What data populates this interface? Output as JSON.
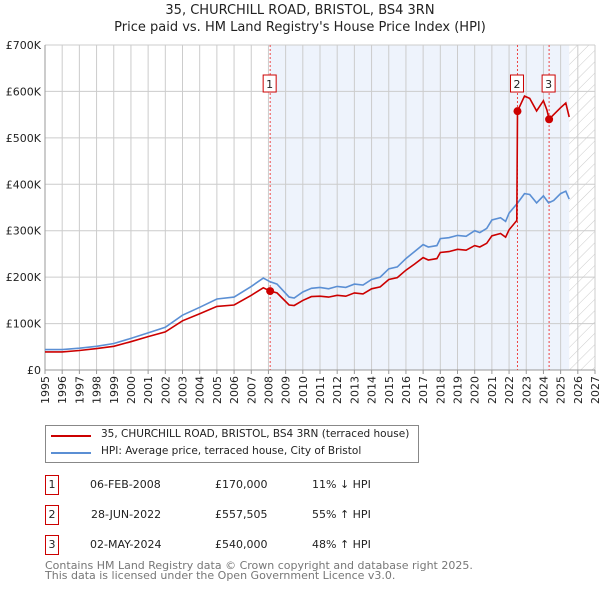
{
  "title_line1": "35, CHURCHILL ROAD, BRISTOL, BS4 3RN",
  "title_line2": "Price paid vs. HM Land Registry's House Price Index (HPI)",
  "chart_data": {
    "type": "line",
    "title": "35, CHURCHILL ROAD, BRISTOL, BS4 3RN — Price paid vs. HM Land Registry's House Price Index (HPI)",
    "xlim": [
      1995,
      2027
    ],
    "ylim": [
      0,
      700000
    ],
    "x_ticks": [
      "1995",
      "1996",
      "1997",
      "1998",
      "1999",
      "2000",
      "2001",
      "2002",
      "2003",
      "2004",
      "2005",
      "2006",
      "2007",
      "2008",
      "2009",
      "2010",
      "2011",
      "2012",
      "2013",
      "2014",
      "2015",
      "2016",
      "2017",
      "2018",
      "2019",
      "2020",
      "2021",
      "2022",
      "2023",
      "2024",
      "2025",
      "2026",
      "2027"
    ],
    "y_ticks": [
      {
        "v": 0,
        "label": "£0"
      },
      {
        "v": 100000,
        "label": "£100K"
      },
      {
        "v": 200000,
        "label": "£200K"
      },
      {
        "v": 300000,
        "label": "£300K"
      },
      {
        "v": 400000,
        "label": "£400K"
      },
      {
        "v": 500000,
        "label": "£500K"
      },
      {
        "v": 600000,
        "label": "£600K"
      },
      {
        "v": 700000,
        "label": "£700K"
      }
    ],
    "grid": true,
    "shaded_range": [
      2008.1,
      2025.5
    ],
    "forecast_hatch_from": 2025.5,
    "series": [
      {
        "name": "35, CHURCHILL ROAD, BRISTOL, BS4 3RN (terraced house)",
        "color": "#cc0000",
        "x": [
          1995,
          1996,
          1997,
          1998,
          1999,
          2000,
          2001,
          2002,
          2003,
          2004,
          2005,
          2006,
          2007,
          2007.7,
          2008.1,
          2008.5,
          2009.2,
          2009.5,
          2010,
          2010.5,
          2011,
          2011.5,
          2012,
          2012.5,
          2013,
          2013.5,
          2014,
          2014.5,
          2015,
          2015.5,
          2016,
          2016.5,
          2017,
          2017.3,
          2017.8,
          2018,
          2018.5,
          2019,
          2019.5,
          2020,
          2020.3,
          2020.7,
          2021,
          2021.5,
          2021.8,
          2022,
          2022.45,
          2022.49,
          2022.9,
          2023.2,
          2023.6,
          2024,
          2024.2,
          2024.33,
          2024.6,
          2025,
          2025.3,
          2025.5
        ],
        "y": [
          39000,
          39000,
          42000,
          46000,
          51000,
          61000,
          72000,
          82000,
          106000,
          121000,
          137000,
          140000,
          161000,
          177000,
          170000,
          166000,
          140000,
          139000,
          150000,
          158000,
          159000,
          157000,
          161000,
          159000,
          166000,
          164000,
          175000,
          179000,
          195000,
          199000,
          215000,
          228000,
          242000,
          237000,
          240000,
          253000,
          255000,
          260000,
          258000,
          268000,
          265000,
          273000,
          289000,
          294000,
          286000,
          302000,
          322000,
          557505,
          590000,
          585000,
          558000,
          580000,
          560000,
          540000,
          550000,
          565000,
          575000,
          545000
        ]
      },
      {
        "name": "HPI: Average price, terraced house, City of Bristol",
        "color": "#5b8fd4",
        "x": [
          1995,
          1996,
          1997,
          1998,
          1999,
          2000,
          2001,
          2002,
          2003,
          2004,
          2005,
          2006,
          2007,
          2007.7,
          2008.1,
          2008.5,
          2009.2,
          2009.5,
          2010,
          2010.5,
          2011,
          2011.5,
          2012,
          2012.5,
          2013,
          2013.5,
          2014,
          2014.5,
          2015,
          2015.5,
          2016,
          2016.5,
          2017,
          2017.3,
          2017.8,
          2018,
          2018.5,
          2019,
          2019.5,
          2020,
          2020.3,
          2020.7,
          2021,
          2021.5,
          2021.8,
          2022,
          2022.5,
          2022.9,
          2023.2,
          2023.6,
          2024,
          2024.3,
          2024.6,
          2025,
          2025.3,
          2025.5
        ],
        "y": [
          44000,
          44000,
          47000,
          51000,
          57000,
          68000,
          80000,
          92000,
          118000,
          135000,
          153000,
          157000,
          180000,
          198000,
          190000,
          185000,
          157000,
          155000,
          168000,
          176000,
          178000,
          175000,
          180000,
          178000,
          185000,
          183000,
          195000,
          200000,
          218000,
          222000,
          240000,
          255000,
          270000,
          265000,
          268000,
          283000,
          285000,
          290000,
          288000,
          300000,
          296000,
          305000,
          323000,
          328000,
          320000,
          338000,
          360000,
          380000,
          378000,
          360000,
          375000,
          360000,
          365000,
          380000,
          385000,
          368000
        ]
      }
    ],
    "sales": [
      {
        "num": "1",
        "x": 2008.1,
        "price": 170000
      },
      {
        "num": "2",
        "x": 2022.49,
        "price": 557505
      },
      {
        "num": "3",
        "x": 2024.33,
        "price": 540000
      }
    ]
  },
  "legend": [
    {
      "label": "35, CHURCHILL ROAD, BRISTOL, BS4 3RN (terraced house)",
      "color": "#cc0000"
    },
    {
      "label": "HPI: Average price, terraced house, City of Bristol",
      "color": "#5b8fd4"
    }
  ],
  "table": [
    {
      "num": "1",
      "date": "06-FEB-2008",
      "price": "£170,000",
      "hpi": "11% ↓ HPI"
    },
    {
      "num": "2",
      "date": "28-JUN-2022",
      "price": "£557,505",
      "hpi": "55% ↑ HPI"
    },
    {
      "num": "3",
      "date": "02-MAY-2024",
      "price": "£540,000",
      "hpi": "48% ↑ HPI"
    }
  ],
  "footer_line1": "Contains HM Land Registry data © Crown copyright and database right 2025.",
  "footer_line2": "This data is licensed under the Open Government Licence v3.0."
}
